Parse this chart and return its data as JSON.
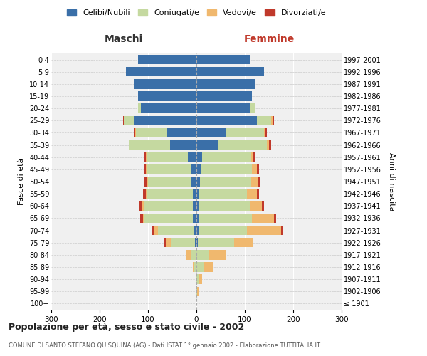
{
  "age_groups": [
    "100+",
    "95-99",
    "90-94",
    "85-89",
    "80-84",
    "75-79",
    "70-74",
    "65-69",
    "60-64",
    "55-59",
    "50-54",
    "45-49",
    "40-44",
    "35-39",
    "30-34",
    "25-29",
    "20-24",
    "15-19",
    "10-14",
    "5-9",
    "0-4"
  ],
  "birth_years": [
    "≤ 1901",
    "1902-1906",
    "1907-1911",
    "1912-1916",
    "1917-1921",
    "1922-1926",
    "1927-1931",
    "1932-1936",
    "1937-1941",
    "1942-1946",
    "1947-1951",
    "1952-1956",
    "1957-1961",
    "1962-1966",
    "1967-1971",
    "1972-1976",
    "1977-1981",
    "1982-1986",
    "1987-1991",
    "1992-1996",
    "1997-2001"
  ],
  "males": {
    "celibe": [
      0,
      0,
      0,
      0,
      0,
      3,
      5,
      7,
      8,
      8,
      10,
      12,
      18,
      55,
      60,
      130,
      115,
      120,
      130,
      145,
      120
    ],
    "coniugato": [
      0,
      0,
      2,
      5,
      12,
      50,
      75,
      100,
      100,
      95,
      90,
      90,
      85,
      85,
      65,
      20,
      5,
      0,
      0,
      0,
      0
    ],
    "vedovo": [
      0,
      0,
      0,
      3,
      8,
      10,
      8,
      4,
      4,
      2,
      2,
      2,
      2,
      0,
      2,
      0,
      0,
      0,
      0,
      0,
      0
    ],
    "divorziato": [
      0,
      0,
      0,
      0,
      0,
      3,
      5,
      5,
      5,
      5,
      5,
      3,
      2,
      0,
      2,
      2,
      0,
      0,
      0,
      0,
      0
    ]
  },
  "females": {
    "nubile": [
      0,
      0,
      0,
      0,
      0,
      3,
      5,
      5,
      5,
      5,
      8,
      10,
      12,
      45,
      60,
      125,
      110,
      115,
      120,
      140,
      110
    ],
    "coniugata": [
      0,
      2,
      4,
      15,
      25,
      75,
      100,
      110,
      105,
      100,
      105,
      105,
      100,
      100,
      80,
      30,
      10,
      0,
      0,
      0,
      0
    ],
    "vedova": [
      0,
      2,
      8,
      20,
      35,
      40,
      70,
      45,
      25,
      20,
      15,
      10,
      5,
      5,
      3,
      3,
      2,
      0,
      0,
      0,
      0
    ],
    "divorziata": [
      0,
      0,
      0,
      0,
      0,
      0,
      5,
      5,
      5,
      5,
      5,
      5,
      5,
      5,
      2,
      2,
      0,
      0,
      0,
      0,
      0
    ]
  },
  "colors": {
    "celibe": "#3a6fa8",
    "coniugato": "#c5d9a0",
    "vedovo": "#f0b86e",
    "divorziato": "#c0392b"
  },
  "xlim": 300,
  "title": "Popolazione per età, sesso e stato civile - 2002",
  "subtitle": "COMUNE DI SANTO STEFANO QUISQUINA (AG) - Dati ISTAT 1° gennaio 2002 - Elaborazione TUTTITALIA.IT",
  "ylabel_left": "Fasce di età",
  "ylabel_right": "Anni di nascita",
  "xlabel_left": "Maschi",
  "xlabel_right": "Femmine",
  "bg_color": "#f0f0f0",
  "legend_labels": [
    "Celibi/Nubili",
    "Coniugati/e",
    "Vedovi/e",
    "Divorziati/e"
  ]
}
